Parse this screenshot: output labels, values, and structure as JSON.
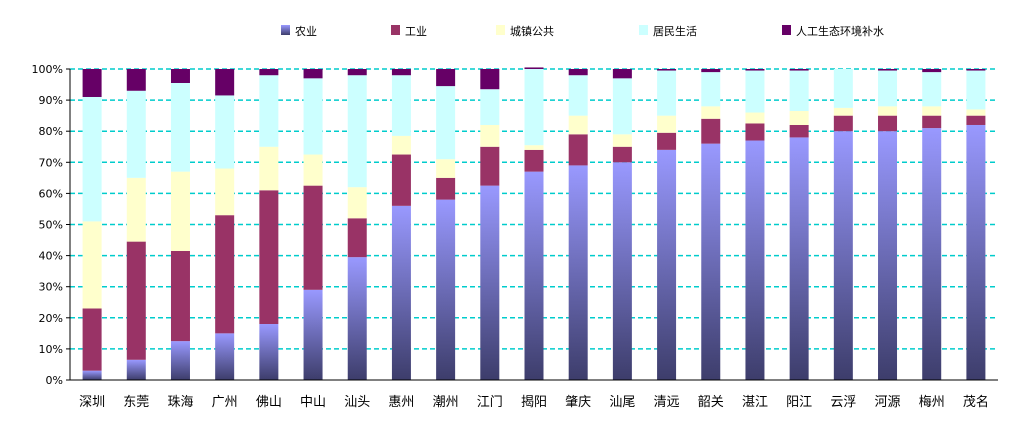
{
  "chart_data": {
    "type": "bar",
    "stacked": true,
    "percent": true,
    "grid": true,
    "legend_position": "top",
    "title": "",
    "xlabel": "",
    "ylabel": "",
    "ylim": [
      0,
      100
    ],
    "yticks": [
      "0%",
      "10%",
      "20%",
      "30%",
      "40%",
      "50%",
      "60%",
      "70%",
      "80%",
      "90%",
      "100%"
    ],
    "categories": [
      "深圳",
      "东莞",
      "珠海",
      "广州",
      "佛山",
      "中山",
      "汕头",
      "惠州",
      "潮州",
      "江门",
      "揭阳",
      "肇庆",
      "汕尾",
      "清远",
      "韶关",
      "湛江",
      "阳江",
      "云浮",
      "河源",
      "梅州",
      "茂名"
    ],
    "series": [
      {
        "name": "农业",
        "color": "#9999ff",
        "values": [
          3,
          6.5,
          12.5,
          15,
          18,
          29,
          39.5,
          56,
          58,
          62.5,
          67,
          69,
          70,
          74,
          76,
          77,
          78,
          80,
          80,
          81,
          82
        ]
      },
      {
        "name": "工业",
        "color": "#993366",
        "values": [
          20,
          38,
          29,
          38,
          43,
          33.5,
          12.5,
          16.5,
          7,
          12.5,
          7,
          10,
          5,
          5.5,
          8,
          5.5,
          4,
          5,
          5,
          4,
          3
        ]
      },
      {
        "name": "城镇公共",
        "color": "#ffffcc",
        "values": [
          28,
          20.5,
          25.5,
          15,
          14,
          10,
          10,
          6,
          6,
          7,
          1.5,
          6,
          4,
          5.5,
          4,
          3.5,
          4.5,
          2.5,
          3,
          3,
          2
        ]
      },
      {
        "name": "居民生活",
        "color": "#ccffff",
        "values": [
          40,
          28,
          28.5,
          23.5,
          23,
          24.5,
          36,
          19.5,
          23.5,
          11.5,
          24.5,
          13,
          18,
          14.5,
          11,
          13.5,
          13,
          12.5,
          11.5,
          11,
          12.5
        ]
      },
      {
        "name": "人工生态环境补水",
        "color": "#660066",
        "values": [
          9,
          7,
          4.5,
          8.5,
          2,
          3,
          2,
          2,
          5.5,
          6.5,
          0.5,
          2,
          3,
          0.5,
          1,
          0.5,
          0.5,
          0,
          0.5,
          1,
          0.5
        ]
      }
    ]
  }
}
